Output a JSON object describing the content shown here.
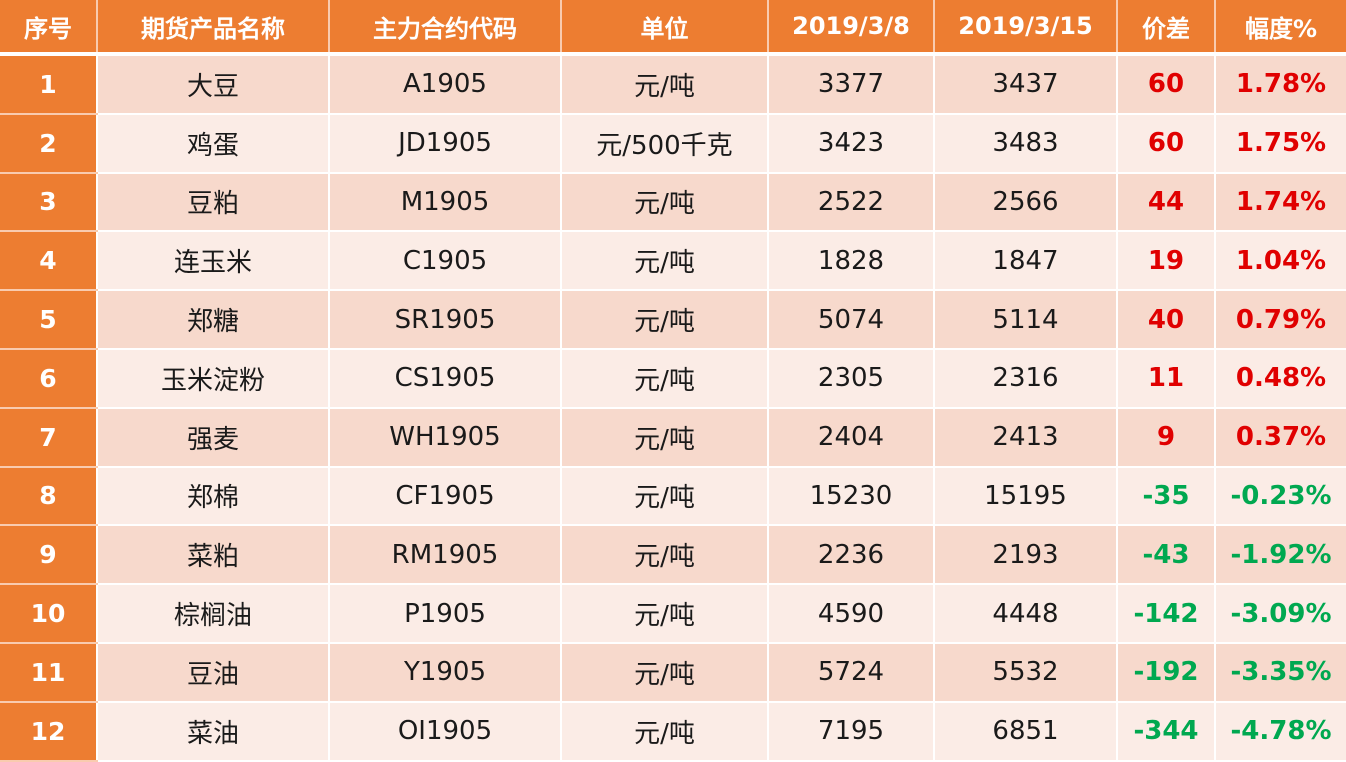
{
  "headers": [
    "序号",
    "期货产品名称",
    "主力合约代码",
    "单位",
    "2019/3/8",
    "2019/3/15",
    "价差",
    "幅度%"
  ],
  "rows": [
    {
      "idx": "1",
      "name": "大豆",
      "code": "A1905",
      "unit": "元/吨",
      "d1": "3377",
      "d2": "3437",
      "diff": "60",
      "pct": "1.78%",
      "sign": "pos"
    },
    {
      "idx": "2",
      "name": "鸡蛋",
      "code": "JD1905",
      "unit": "元/500千克",
      "d1": "3423",
      "d2": "3483",
      "diff": "60",
      "pct": "1.75%",
      "sign": "pos"
    },
    {
      "idx": "3",
      "name": "豆粕",
      "code": "M1905",
      "unit": "元/吨",
      "d1": "2522",
      "d2": "2566",
      "diff": "44",
      "pct": "1.74%",
      "sign": "pos"
    },
    {
      "idx": "4",
      "name": "连玉米",
      "code": "C1905",
      "unit": "元/吨",
      "d1": "1828",
      "d2": "1847",
      "diff": "19",
      "pct": "1.04%",
      "sign": "pos"
    },
    {
      "idx": "5",
      "name": "郑糖",
      "code": "SR1905",
      "unit": "元/吨",
      "d1": "5074",
      "d2": "5114",
      "diff": "40",
      "pct": "0.79%",
      "sign": "pos"
    },
    {
      "idx": "6",
      "name": "玉米淀粉",
      "code": "CS1905",
      "unit": "元/吨",
      "d1": "2305",
      "d2": "2316",
      "diff": "11",
      "pct": "0.48%",
      "sign": "pos"
    },
    {
      "idx": "7",
      "name": "强麦",
      "code": "WH1905",
      "unit": "元/吨",
      "d1": "2404",
      "d2": "2413",
      "diff": "9",
      "pct": "0.37%",
      "sign": "pos"
    },
    {
      "idx": "8",
      "name": "郑棉",
      "code": "CF1905",
      "unit": "元/吨",
      "d1": "15230",
      "d2": "15195",
      "diff": "-35",
      "pct": "-0.23%",
      "sign": "neg"
    },
    {
      "idx": "9",
      "name": "菜粕",
      "code": "RM1905",
      "unit": "元/吨",
      "d1": "2236",
      "d2": "2193",
      "diff": "-43",
      "pct": "-1.92%",
      "sign": "neg"
    },
    {
      "idx": "10",
      "name": "棕榈油",
      "code": "P1905",
      "unit": "元/吨",
      "d1": "4590",
      "d2": "4448",
      "diff": "-142",
      "pct": "-3.09%",
      "sign": "neg"
    },
    {
      "idx": "11",
      "name": "豆油",
      "code": "Y1905",
      "unit": "元/吨",
      "d1": "5724",
      "d2": "5532",
      "diff": "-192",
      "pct": "-3.35%",
      "sign": "neg"
    },
    {
      "idx": "12",
      "name": "菜油",
      "code": "OI1905",
      "unit": "元/吨",
      "d1": "7195",
      "d2": "6851",
      "diff": "-344",
      "pct": "-4.78%",
      "sign": "neg"
    }
  ],
  "colors": {
    "header_bg": "#ED7D31",
    "row_odd": "#F7D9CC",
    "row_even": "#FBECE6",
    "positive": "#E00000",
    "negative": "#00A850"
  }
}
